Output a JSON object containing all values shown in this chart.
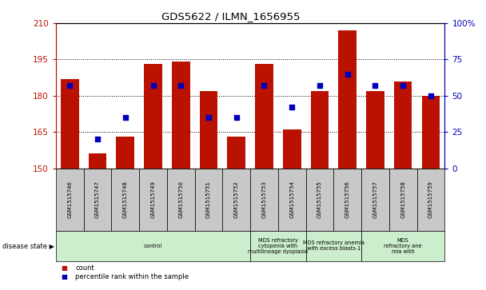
{
  "title": "GDS5622 / ILMN_1656955",
  "samples": [
    "GSM1515746",
    "GSM1515747",
    "GSM1515748",
    "GSM1515749",
    "GSM1515750",
    "GSM1515751",
    "GSM1515752",
    "GSM1515753",
    "GSM1515754",
    "GSM1515755",
    "GSM1515756",
    "GSM1515757",
    "GSM1515758",
    "GSM1515759"
  ],
  "counts": [
    187,
    156,
    163,
    193,
    194,
    182,
    163,
    193,
    166,
    182,
    207,
    182,
    186,
    180
  ],
  "percentiles": [
    57,
    20,
    35,
    57,
    57,
    35,
    35,
    57,
    42,
    57,
    65,
    57,
    57,
    50
  ],
  "ylim_left": [
    150,
    210
  ],
  "ylim_right": [
    0,
    100
  ],
  "yticks_left": [
    150,
    165,
    180,
    195,
    210
  ],
  "yticks_right": [
    0,
    25,
    50,
    75,
    100
  ],
  "bar_color": "#bb1100",
  "dot_color": "#0000bb",
  "bar_width": 0.65,
  "group_configs": [
    {
      "start": 0,
      "end": 7,
      "label": "control"
    },
    {
      "start": 7,
      "end": 9,
      "label": "MDS refractory\ncytopenia with\nmultilineage dysplasia"
    },
    {
      "start": 9,
      "end": 11,
      "label": "MDS refractory anemia\nwith excess blasts-1"
    },
    {
      "start": 11,
      "end": 14,
      "label": "MDS\nrefractory ane\nmia with"
    }
  ],
  "disease_state_label": "disease state",
  "legend_count_label": "count",
  "legend_pct_label": "percentile rank within the sample",
  "bg_color": "#ffffff",
  "sample_box_color": "#c8c8c8",
  "group_box_color": "#cceecc",
  "right_axis_pct_label": "100%"
}
